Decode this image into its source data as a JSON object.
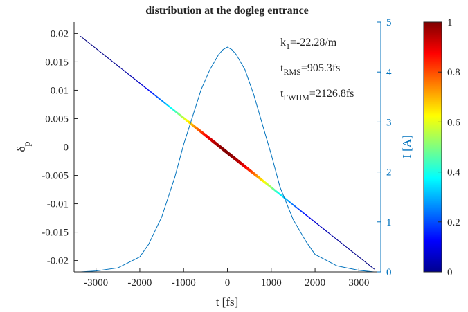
{
  "chart_data": {
    "type": "scatter",
    "title": "distribution at the dogleg entrance",
    "xlabel": "t [fs]",
    "ylabel_left_main": "δ",
    "ylabel_left_sub": "p",
    "ylabel_right": "I [A]",
    "xlim": [
      -3500,
      3500
    ],
    "ylim_left": [
      -0.022,
      0.022
    ],
    "ylim_right": [
      0,
      5
    ],
    "x_ticks": [
      -3000,
      -2000,
      -1000,
      0,
      1000,
      2000,
      3000
    ],
    "x_tick_labels": [
      "-3000",
      "-2000",
      "-1000",
      "0",
      "1000",
      "2000",
      "3000"
    ],
    "y_left_ticks": [
      0.02,
      0.015,
      0.01,
      0.005,
      0,
      -0.005,
      -0.01,
      -0.015,
      -0.02
    ],
    "y_left_tick_labels": [
      "0.02",
      "0.015",
      "0.01",
      "0.005",
      "0",
      "-0.005",
      "-0.01",
      "-0.015",
      "-0.02"
    ],
    "y_right_ticks": [
      0,
      1,
      2,
      3,
      4,
      5
    ],
    "y_right_tick_labels": [
      "0",
      "1",
      "2",
      "3",
      "4",
      "5"
    ],
    "colorbar": {
      "range": [
        0,
        1
      ],
      "ticks": [
        0,
        0.2,
        0.4,
        0.6,
        0.8,
        1
      ],
      "tick_labels": [
        "0",
        "0.2",
        "0.4",
        "0.6",
        "0.8",
        "1"
      ],
      "colormap": "jet"
    },
    "annotations": [
      {
        "main": "k",
        "sub": "1",
        "rest": "=-22.28/m"
      },
      {
        "main": "t",
        "sub": "RMS",
        "rest": "=905.3fs"
      },
      {
        "main": "t",
        "sub": "FWHM",
        "rest": "=2126.8fs"
      }
    ],
    "series": [
      {
        "kind": "phase_space_scatter",
        "x_range": [
          -3350,
          3350
        ],
        "y_at_xmin": 0.0195,
        "y_at_xmax": -0.0215,
        "color_by": "local density (normalized)"
      },
      {
        "kind": "current_profile_line",
        "axis": "right",
        "color": "#0072BD",
        "x": [
          -3350,
          -3000,
          -2500,
          -2000,
          -1800,
          -1500,
          -1200,
          -1000,
          -800,
          -600,
          -400,
          -200,
          -100,
          0,
          100,
          200,
          400,
          600,
          800,
          1000,
          1200,
          1500,
          1800,
          2000,
          2500,
          3000,
          3350
        ],
        "y": [
          0.0,
          0.02,
          0.08,
          0.3,
          0.55,
          1.1,
          1.9,
          2.55,
          3.1,
          3.65,
          4.05,
          4.35,
          4.45,
          4.5,
          4.45,
          4.35,
          4.05,
          3.55,
          2.95,
          2.35,
          1.7,
          1.05,
          0.6,
          0.35,
          0.12,
          0.03,
          0.0
        ]
      }
    ],
    "colors": {
      "axis_right": "#0072BD",
      "axis_left": "#262626"
    }
  }
}
